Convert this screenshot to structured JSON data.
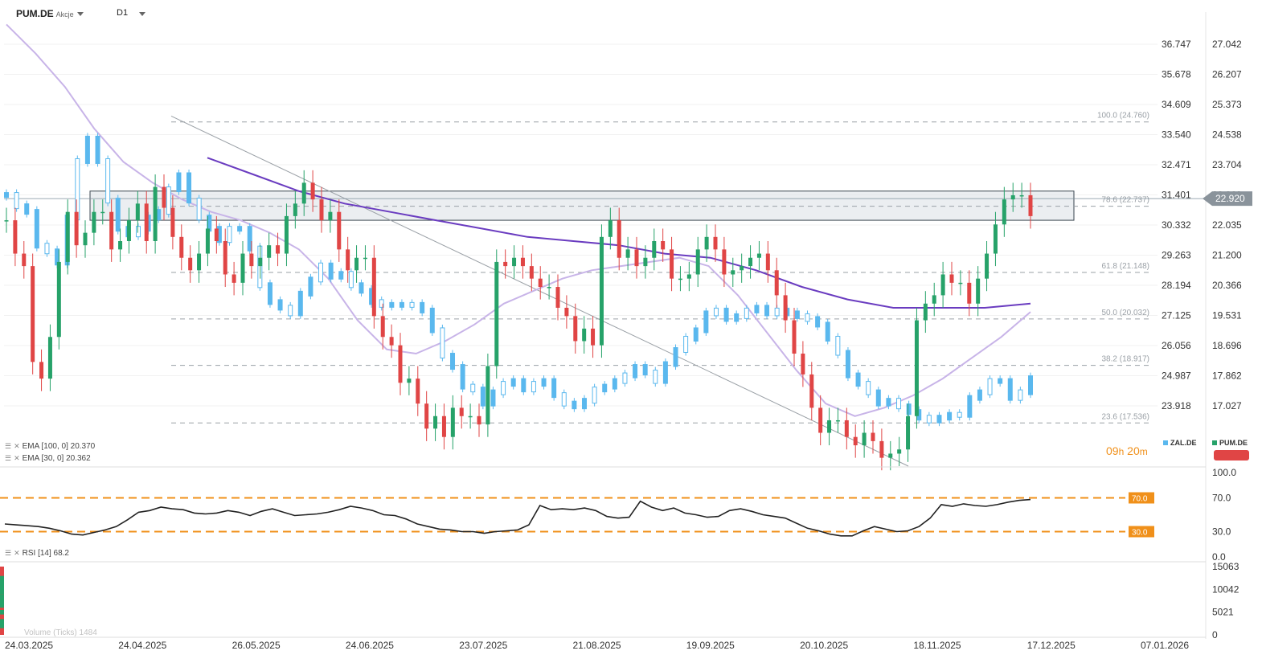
{
  "header": {
    "symbol": "PUM.DE",
    "asset_type": "Akcje",
    "timeframe": "D1"
  },
  "indicators": {
    "ema100": "EMA [100, 0] 20.370",
    "ema30": "EMA [30, 0] 20.362",
    "rsi": "RSI [14] 68.2",
    "volume": "Volume (Ticks) 1484"
  },
  "legend": {
    "zal": "ZAL.DE",
    "pum": "PUM.DE",
    "zal_color": "#5ab8ee",
    "pum_color": "#26a269"
  },
  "timer": {
    "hours": "09",
    "h": "h",
    "minutes": "20",
    "m": "m"
  },
  "colors": {
    "up": "#26a269",
    "down": "#e04545",
    "compare": "#5ab8ee",
    "ema100": "#6a3cc0",
    "ema30": "#c8b4e8",
    "rsi": "#222222",
    "rsi_level": "#f0901a",
    "zone": "#dde3e7",
    "price_tag": "#8a939b"
  },
  "chart_data": [
    {
      "type": "candlestick",
      "title": "PUM.DE D1",
      "x_ticks": [
        "24.03.2025",
        "24.04.2025",
        "26.05.2025",
        "24.06.2025",
        "23.07.2025",
        "21.08.2025",
        "19.09.2025",
        "20.10.2025",
        "18.11.2025",
        "17.12.2025",
        "07.01.2026"
      ],
      "right_axis_ticks": [
        "27.042",
        "26.207",
        "25.373",
        "24.538",
        "23.704",
        "22.869",
        "22.035",
        "21.200",
        "20.366",
        "19.531",
        "18.696",
        "17.862",
        "17.027"
      ],
      "left_axis_ticks": [
        "36.747",
        "35.678",
        "34.609",
        "33.540",
        "32.471",
        "31.401",
        "30.332",
        "29.263",
        "28.194",
        "27.125",
        "26.056",
        "24.987",
        "23.918"
      ],
      "current_price": "22.920",
      "ylim": [
        16.5,
        27.3
      ],
      "fibonacci": [
        {
          "level": "100.0",
          "value": 24.76,
          "label": "100.0 (24.760)"
        },
        {
          "level": "78.6",
          "value": 22.737,
          "label": "78.6 (22.737)"
        },
        {
          "level": "61.8",
          "value": 21.148,
          "label": "61.8 (21.148)"
        },
        {
          "level": "50.0",
          "value": 20.032,
          "label": "50.0 (20.032)"
        },
        {
          "level": "38.2",
          "value": 18.917,
          "label": "38.2 (18.917)"
        },
        {
          "level": "23.6",
          "value": 17.536,
          "label": "23.6 (17.536)"
        }
      ],
      "resistance_zone": [
        22.4,
        23.1
      ],
      "trendline": {
        "from": {
          "x": "17.04.2025",
          "y": 24.9
        },
        "to": {
          "x": "18.11.2025",
          "y": 16.5
        }
      },
      "series": [
        {
          "name": "PUM.DE",
          "kind": "candles",
          "values": [
            22.4,
            21.6,
            21.3,
            19.0,
            18.6,
            19.6,
            21.4,
            22.6,
            21.8,
            22.1,
            22.6,
            22.6,
            21.7,
            21.9,
            22.4,
            22.8,
            21.9,
            23.2,
            22.7,
            22.0,
            21.5,
            21.2,
            21.6,
            22.2,
            21.9,
            21.1,
            20.9,
            21.6,
            21.3,
            21.5,
            21.8,
            21.6,
            22.5,
            22.8,
            23.3,
            22.9,
            22.4,
            22.6,
            21.7,
            21.2,
            21.5,
            21.5,
            20.1,
            19.6,
            19.4,
            18.5,
            18.6,
            18.0,
            17.4,
            17.7,
            17.2,
            17.9,
            17.7,
            17.7,
            17.5,
            18.9,
            21.4,
            21.3,
            21.5,
            21.3,
            21.0,
            20.8,
            20.8,
            20.3,
            20.1,
            19.5,
            19.8,
            19.4,
            22.0,
            22.4,
            21.5,
            21.7,
            21.3,
            21.5,
            21.9,
            21.7,
            21.0,
            21.0,
            21.1,
            21.7,
            22.0,
            21.7,
            21.1,
            21.2,
            21.3,
            21.5,
            21.6,
            21.2,
            20.6,
            20.0,
            19.2,
            18.7,
            17.9,
            17.3,
            17.6,
            17.6,
            17.2,
            17.0,
            17.3,
            17.1,
            16.7,
            16.8,
            16.9,
            17.7,
            20.0,
            20.4,
            20.6,
            21.1,
            20.9,
            20.9,
            20.4,
            21.0,
            21.6,
            22.3,
            22.9,
            23.0,
            23.0,
            22.5
          ]
        },
        {
          "name": "ZAL.DE",
          "kind": "compare",
          "values": [
            31.4,
            31.0,
            30.8,
            29.6,
            29.4,
            29.0,
            30.6,
            32.6,
            33.4,
            32.6,
            31.2,
            30.2,
            30.0,
            30.2,
            30.6,
            30.8,
            31.6,
            32.1,
            31.2,
            30.6,
            30.2,
            29.8,
            30.2,
            30.2,
            29.5,
            28.2,
            27.6,
            27.4,
            27.2,
            27.9,
            28.4,
            28.9,
            28.5,
            28.6,
            28.2,
            28.0,
            27.6,
            27.5,
            27.5,
            27.5,
            27.5,
            27.3,
            26.6,
            25.7,
            25.3,
            24.6,
            24.5,
            24.0,
            24.4,
            24.7,
            24.8,
            24.5,
            24.7,
            24.8,
            24.3,
            24.0,
            23.9,
            24.1,
            24.5,
            24.6,
            24.8,
            25.0,
            25.3,
            25.1,
            24.8,
            25.4,
            25.9,
            26.3,
            26.6,
            27.2,
            27.3,
            27.0,
            27.1,
            27.3,
            27.4,
            27.2,
            27.3,
            27.2,
            27.1,
            27.0,
            26.8,
            26.3,
            25.8,
            25.0,
            24.7,
            24.4,
            24.0,
            24.1,
            23.9,
            23.7,
            23.5,
            23.4,
            23.5,
            23.6,
            23.6,
            24.2,
            24.4,
            24.8,
            24.8,
            24.2,
            24.4,
            24.9
          ]
        },
        {
          "name": "EMA 100",
          "kind": "line",
          "values": [
            23.9,
            23.5,
            23.1,
            22.8,
            22.6,
            22.4,
            22.2,
            22.0,
            21.9,
            21.8,
            21.6,
            21.5,
            21.2,
            20.8,
            20.5,
            20.3,
            20.3,
            20.3,
            20.4
          ],
          "label": "20.370"
        },
        {
          "name": "EMA 30",
          "kind": "line",
          "values": [
            27.1,
            26.4,
            25.6,
            24.6,
            23.8,
            23.3,
            22.9,
            22.6,
            22.4,
            22.1,
            21.7,
            21.0,
            20.0,
            19.3,
            19.2,
            19.5,
            19.9,
            20.4,
            20.7,
            21.0,
            21.2,
            21.3,
            21.4,
            21.5,
            21.3,
            20.6,
            19.7,
            18.8,
            18.0,
            17.7,
            17.9,
            18.2,
            18.6,
            19.1,
            19.6,
            20.2
          ],
          "label": "20.362"
        }
      ]
    },
    {
      "type": "line",
      "title": "RSI [14]",
      "ylim": [
        0,
        100
      ],
      "y_ticks": [
        "100.0",
        "70.0",
        "30.0",
        "0.0"
      ],
      "levels": [
        {
          "value": 70,
          "label": "70.0"
        },
        {
          "value": 30,
          "label": "30.0"
        }
      ],
      "last_value": 68.2,
      "values": [
        39,
        38,
        37,
        36,
        34,
        31,
        27,
        26,
        29,
        32,
        36,
        44,
        53,
        55,
        59,
        57,
        56,
        52,
        51,
        52,
        55,
        53,
        49,
        54,
        57,
        53,
        49,
        50,
        51,
        53,
        56,
        60,
        58,
        55,
        50,
        49,
        45,
        39,
        36,
        33,
        32,
        30,
        30,
        28,
        30,
        31,
        32,
        38,
        61,
        56,
        57,
        56,
        58,
        55,
        48,
        46,
        47,
        66,
        59,
        55,
        58,
        52,
        50,
        47,
        48,
        55,
        57,
        54,
        50,
        48,
        46,
        40,
        34,
        31,
        27,
        25,
        25,
        31,
        36,
        33,
        30,
        31,
        36,
        46,
        62,
        60,
        63,
        61,
        60,
        62,
        65,
        67,
        68
      ]
    },
    {
      "type": "bar",
      "title": "Volume (Ticks)",
      "y_ticks": [
        "15063",
        "10042",
        "5021",
        "0"
      ],
      "last_value": 1484,
      "values": [
        9000,
        10500,
        8000,
        9500,
        8000,
        11000,
        14000,
        15063,
        15063,
        15063,
        13000,
        10500,
        8500,
        7000,
        8000,
        9000,
        7500,
        6000,
        8000,
        10000,
        7000,
        9000,
        8000,
        7000,
        6500,
        8500,
        6000,
        7000,
        8000,
        9000,
        5500,
        6500,
        7000,
        6000,
        6500,
        7500,
        6000,
        5500,
        6000,
        5500,
        6500,
        6000,
        12000,
        7000,
        5500,
        6000,
        5000,
        5500,
        7000,
        6500,
        5500,
        9000,
        6500,
        5500,
        6000,
        7000,
        5000,
        4500,
        5500,
        6000,
        7000,
        5500,
        6500,
        4500,
        5000,
        6000,
        4500,
        5000,
        5500,
        6500,
        5000,
        6000,
        5500,
        5000,
        4500,
        5000,
        4000,
        5000,
        9000,
        5500,
        5000,
        6000,
        5500,
        4000,
        4500,
        4500,
        4000,
        3500,
        3500,
        4000,
        3000,
        2500,
        3500,
        1484
      ]
    }
  ]
}
